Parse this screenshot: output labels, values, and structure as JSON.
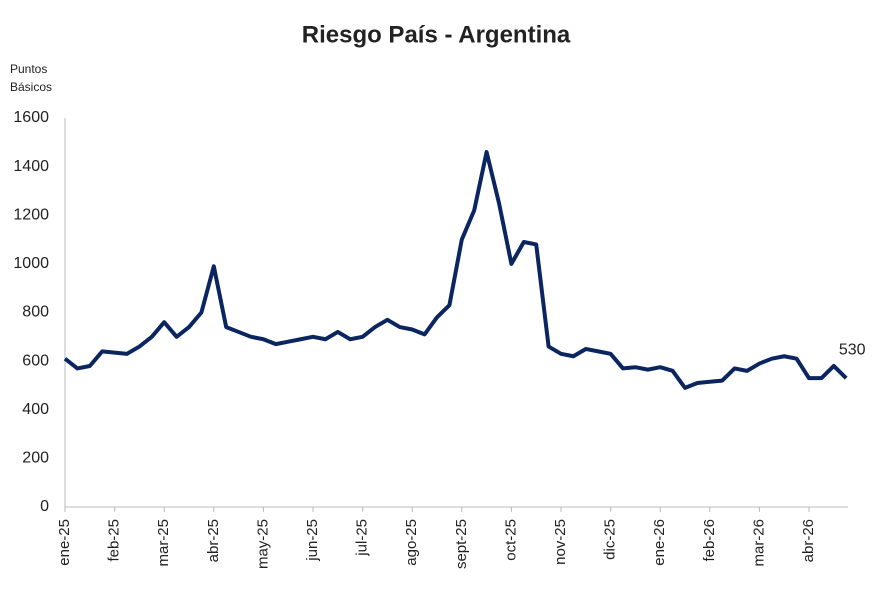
{
  "chart_data": {
    "type": "line",
    "title": "Riesgo País - Argentina",
    "ylabel": [
      "Puntos",
      "Básicos"
    ],
    "categories": [
      "ene-25",
      null,
      null,
      null,
      "feb-25",
      null,
      null,
      null,
      "mar-25",
      null,
      null,
      null,
      "abr-25",
      null,
      null,
      null,
      "may-25",
      null,
      null,
      null,
      "jun-25",
      null,
      null,
      null,
      "jul-25",
      null,
      null,
      null,
      "ago-25",
      null,
      null,
      null,
      "sept-25",
      null,
      null,
      null,
      "oct-25",
      null,
      null,
      null,
      "nov-25",
      null,
      null,
      null,
      "dic-25",
      null,
      null,
      null,
      "ene-26",
      null,
      null,
      null,
      "feb-26",
      null,
      null,
      null,
      "mar-26",
      null,
      null,
      null,
      "abr-26",
      null,
      null,
      null
    ],
    "series": [
      {
        "name": "Riesgo País",
        "color": "#0b2560",
        "values": [
          610,
          570,
          580,
          640,
          635,
          630,
          660,
          700,
          760,
          700,
          740,
          800,
          990,
          740,
          720,
          700,
          690,
          670,
          680,
          690,
          700,
          690,
          720,
          690,
          700,
          740,
          770,
          740,
          730,
          710,
          780,
          830,
          1100,
          1220,
          1460,
          1250,
          1000,
          1090,
          1080,
          660,
          630,
          620,
          650,
          640,
          630,
          570,
          575,
          565,
          575,
          560,
          490,
          510,
          515,
          520,
          570,
          560,
          590,
          610,
          620,
          610,
          530,
          530,
          580,
          530
        ]
      }
    ],
    "ylim": [
      0,
      1600
    ],
    "yticks": [
      0,
      200,
      400,
      600,
      800,
      1000,
      1200,
      1400,
      1600
    ],
    "grid": false
  }
}
